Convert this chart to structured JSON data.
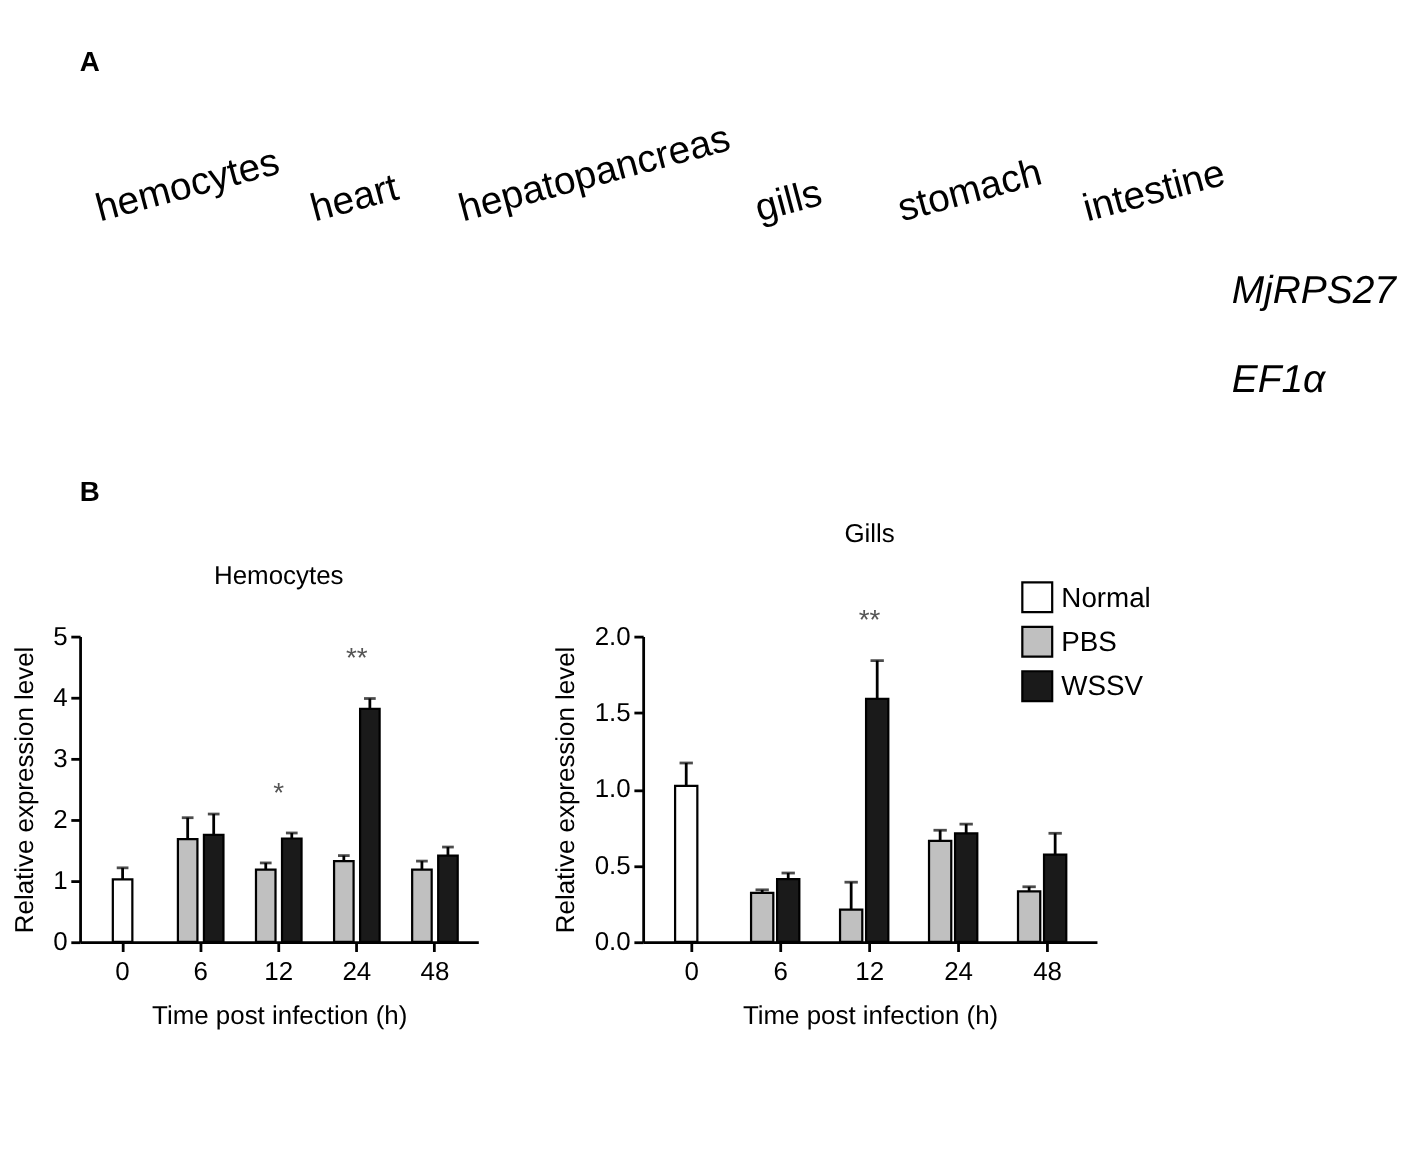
{
  "chart_data": [
    {
      "type": "other",
      "annotations": [
        "A",
        "hemocytes",
        "heart",
        "hepatopancreas",
        "gills",
        "stomach",
        "intestine",
        "MjRPS27",
        "EF1α",
        "B"
      ]
    },
    {
      "type": "bar",
      "title": "Hemocytes",
      "xlabel": "Time post infection (h)",
      "ylabel": "Relative expression level",
      "categories": [
        "0",
        "6",
        "12",
        "24",
        "48"
      ],
      "series": [
        {
          "color": "#ffffff",
          "values": [
            1.02,
            null,
            null,
            null,
            null
          ],
          "errors": [
            [
              1.02,
              1.21
            ],
            null,
            null,
            null,
            null
          ]
        },
        {
          "color": "#c0c0c0",
          "values": [
            null,
            1.68,
            1.18,
            1.32,
            1.18
          ],
          "errors": [
            null,
            [
              1.68,
              2.03
            ],
            [
              1.18,
              1.29
            ],
            [
              1.32,
              1.41
            ],
            [
              1.18,
              1.32
            ]
          ]
        },
        {
          "color": "#1a1a1a",
          "values": [
            null,
            1.75,
            1.69,
            3.81,
            1.41
          ],
          "errors": [
            null,
            [
              1.75,
              2.09
            ],
            [
              1.69,
              1.78
            ],
            [
              3.81,
              3.98
            ],
            [
              1.41,
              1.55
            ]
          ]
        }
      ],
      "ylim": [
        0,
        5
      ],
      "yticks": [
        0,
        1,
        2,
        3,
        4,
        5
      ],
      "grid": false,
      "annotations": [
        "*",
        "**"
      ]
    },
    {
      "type": "bar",
      "title": "Gills",
      "xlabel": "Time post infection (h)",
      "ylabel": "Relative expression level",
      "categories": [
        "0",
        "6",
        "12",
        "24",
        "48"
      ],
      "series": [
        {
          "name": "Normal",
          "color": "#ffffff",
          "values": [
            1.02,
            null,
            null,
            null,
            null
          ],
          "errors": [
            [
              1.02,
              1.17
            ],
            null,
            null,
            null,
            null
          ]
        },
        {
          "name": "PBS",
          "color": "#c0c0c0",
          "values": [
            null,
            0.32,
            0.21,
            0.66,
            0.33
          ],
          "errors": [
            null,
            [
              0.32,
              0.34
            ],
            [
              0.21,
              0.39
            ],
            [
              0.66,
              0.73
            ],
            [
              0.33,
              0.36
            ]
          ]
        },
        {
          "name": "WSSV",
          "color": "#1a1a1a",
          "values": [
            null,
            0.41,
            1.59,
            0.71,
            0.57
          ],
          "errors": [
            null,
            [
              0.41,
              0.45
            ],
            [
              1.59,
              1.84
            ],
            [
              0.71,
              0.77
            ],
            [
              0.57,
              0.71
            ]
          ]
        }
      ],
      "ylim": [
        0,
        2.0
      ],
      "yticks": [
        {
          "value": 0,
          "label": "0.0"
        },
        {
          "value": 0.5,
          "label": "0.5"
        },
        {
          "value": 1,
          "label": "1.0"
        },
        {
          "value": 1.5,
          "label": "1.5"
        },
        {
          "value": 2,
          "label": "2.0"
        }
      ],
      "grid": false,
      "legend": "top right",
      "annotations": [
        "**"
      ]
    }
  ]
}
